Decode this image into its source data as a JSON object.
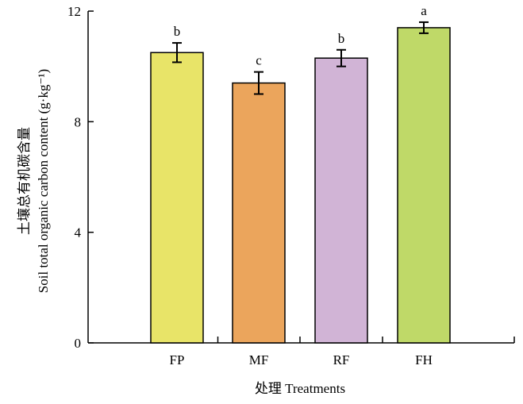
{
  "chart_data": {
    "type": "bar",
    "categories": [
      "FP",
      "MF",
      "RF",
      "FH"
    ],
    "values": [
      10.5,
      9.4,
      10.3,
      11.4
    ],
    "errors": [
      0.35,
      0.4,
      0.3,
      0.2
    ],
    "significance": [
      "b",
      "c",
      "b",
      "a"
    ],
    "colors": [
      "#e8e468",
      "#eba55c",
      "#d1b4d6",
      "#bfd968"
    ],
    "xlabel": "处理 Treatments",
    "ylabel_cn": "土壤总有机碳含量",
    "ylabel_en": "Soil total organic carbon content (g·kg⁻¹)",
    "yticks": [
      0,
      4,
      8,
      12
    ],
    "ylim": [
      0,
      12
    ],
    "grid": false
  }
}
